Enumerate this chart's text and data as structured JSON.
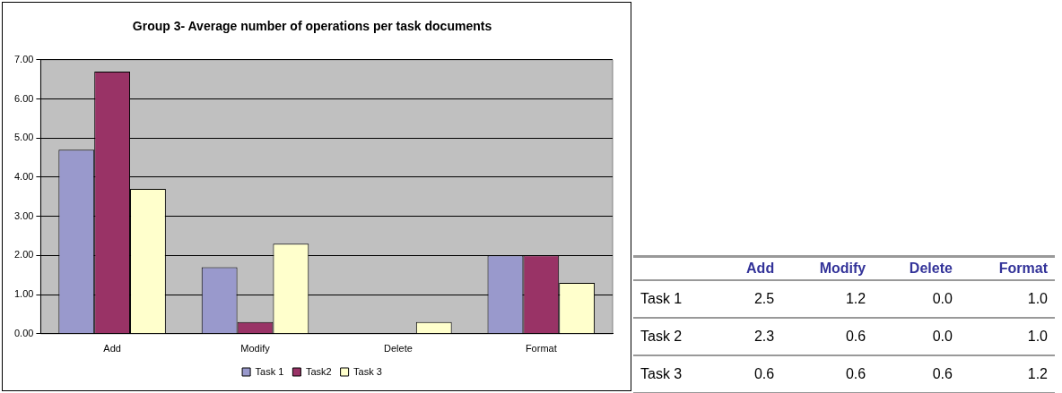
{
  "chart_data": [
    {
      "type": "bar",
      "title": "Group 3- Average number of operations per task documents",
      "categories": [
        "Add",
        "Modify",
        "Delete",
        "Format"
      ],
      "series": [
        {
          "name": "Task 1",
          "color": "#9999cc",
          "values": [
            4.7,
            1.7,
            0,
            2
          ]
        },
        {
          "name": "Task2",
          "color": "#993366",
          "values": [
            6.7,
            0.3,
            0,
            2
          ]
        },
        {
          "name": "Task 3",
          "color": "#ffffcc",
          "values": [
            3.7,
            2.3,
            0.3,
            1.3
          ]
        }
      ],
      "ylim": [
        0,
        7
      ],
      "yticks": [
        {
          "value": 0,
          "label": "0.00"
        },
        {
          "value": 1,
          "label": "1.00"
        },
        {
          "value": 2,
          "label": "2.00"
        },
        {
          "value": 3,
          "label": "3.00"
        },
        {
          "value": 4,
          "label": "4.00"
        },
        {
          "value": 5,
          "label": "5.00"
        },
        {
          "value": 6,
          "label": "6.00"
        },
        {
          "value": 7,
          "label": "7.00"
        }
      ],
      "grid": "y",
      "legend": "bottom"
    },
    {
      "type": "other",
      "categories": [
        "Add",
        "Modify",
        "Delete",
        "Format"
      ],
      "y_categories": [
        "Task 1",
        "Task 2",
        "Task 3"
      ],
      "cells": [
        [
          "2.5",
          "1.2",
          "0.0",
          "1.0"
        ],
        [
          "2.3",
          "0.6",
          "0.0",
          "1.0"
        ],
        [
          "0.6",
          "0.6",
          "0.6",
          "1.2"
        ]
      ]
    }
  ]
}
